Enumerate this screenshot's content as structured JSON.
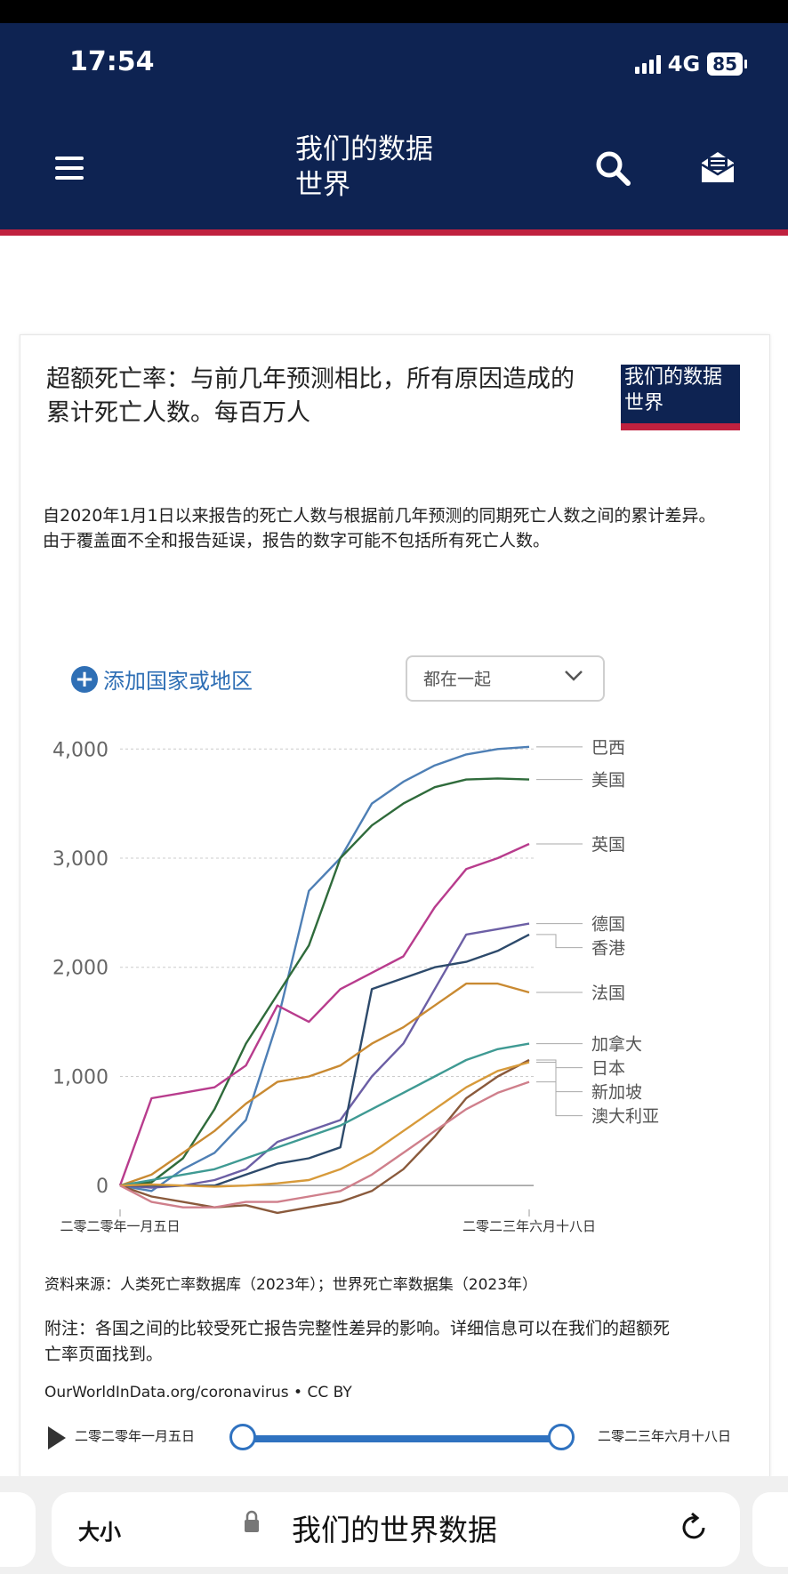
{
  "status": {
    "time": "17:54",
    "network": "4G",
    "battery": "85"
  },
  "header": {
    "site_title": "我们的数据世界"
  },
  "chart_card": {
    "title": "超额死亡率：与前几年预测相比，所有原因造成的累计死亡人数。每百万人",
    "logo_text": "我们的数据世界",
    "subtitle": "自2020年1月1日以来报告的死亡人数与根据前几年预测的同期死亡人数之间的累计差异。由于覆盖面不全和报告延误，报告的数字可能不包括所有死亡人数。",
    "add_country_label": "添加国家或地区",
    "view_select": "都在一起",
    "source": "资料来源：人类死亡率数据库（2023年）；世界死亡率数据集（2023年）",
    "note": "附注：各国之间的比较受死亡报告完整性差异的影响。详细信息可以在我们的超额死亡率页面找到。",
    "url": "OurWorldInData.org/coronavirus • CC BY"
  },
  "timeline": {
    "start": "二零二零年一月五日",
    "end": "二零二三年六月十八日"
  },
  "browser": {
    "size_label": "大小",
    "page_name": "我们的世界数据"
  },
  "colors": {
    "header_bg": "#0e2352",
    "accent_red": "#c0213f",
    "link_blue": "#2f6fb5"
  },
  "chart_data": {
    "type": "line",
    "x_tick_labels": [
      "二零二零年一月五日",
      "二零二三年六月十八日"
    ],
    "ylim": [
      -300,
      4100
    ],
    "y_ticks": [
      0,
      1000,
      2000,
      3000,
      4000
    ],
    "y_tick_labels": [
      "0",
      "1,000",
      "2,000",
      "3,000",
      "4,000"
    ],
    "grid": true,
    "legend": "right-end labels",
    "series": [
      {
        "name": "巴西",
        "color": "#4e7fb5",
        "values": [
          0,
          -50,
          150,
          300,
          600,
          1500,
          2700,
          3000,
          3500,
          3700,
          3850,
          3950,
          4000,
          4020
        ]
      },
      {
        "name": "美国",
        "color": "#2f6b3b",
        "values": [
          0,
          30,
          250,
          700,
          1300,
          1750,
          2200,
          3000,
          3300,
          3500,
          3650,
          3720,
          3730,
          3720
        ]
      },
      {
        "name": "英国",
        "color": "#b83c8d",
        "values": [
          0,
          800,
          850,
          900,
          1100,
          1650,
          1500,
          1800,
          1950,
          2100,
          2550,
          2900,
          3000,
          3130
        ]
      },
      {
        "name": "德国",
        "color": "#6c5fa5",
        "values": [
          0,
          -20,
          0,
          50,
          150,
          400,
          500,
          600,
          1000,
          1300,
          1800,
          2300,
          2350,
          2400
        ]
      },
      {
        "name": "香港",
        "color": "#2d4a6b",
        "values": [
          0,
          0,
          0,
          0,
          100,
          200,
          250,
          350,
          1800,
          1900,
          2000,
          2050,
          2150,
          2300
        ]
      },
      {
        "name": "法国",
        "color": "#c98a32",
        "values": [
          0,
          100,
          300,
          500,
          750,
          950,
          1000,
          1100,
          1300,
          1450,
          1650,
          1850,
          1850,
          1770
        ]
      },
      {
        "name": "加拿大",
        "color": "#3f9a93",
        "values": [
          0,
          50,
          100,
          150,
          250,
          350,
          450,
          550,
          700,
          850,
          1000,
          1150,
          1250,
          1300
        ]
      },
      {
        "name": "日本",
        "color": "#8a5a3c",
        "values": [
          0,
          -100,
          -150,
          -200,
          -180,
          -250,
          -200,
          -150,
          -50,
          150,
          450,
          800,
          1000,
          1150
        ]
      },
      {
        "name": "新加坡",
        "color": "#d79a3a",
        "values": [
          0,
          10,
          0,
          -10,
          0,
          20,
          50,
          150,
          300,
          500,
          700,
          900,
          1050,
          1130
        ]
      },
      {
        "name": "澳大利亚",
        "color": "#cf7f8b",
        "values": [
          0,
          -150,
          -200,
          -200,
          -150,
          -150,
          -100,
          -50,
          100,
          300,
          500,
          700,
          850,
          950
        ]
      }
    ]
  }
}
